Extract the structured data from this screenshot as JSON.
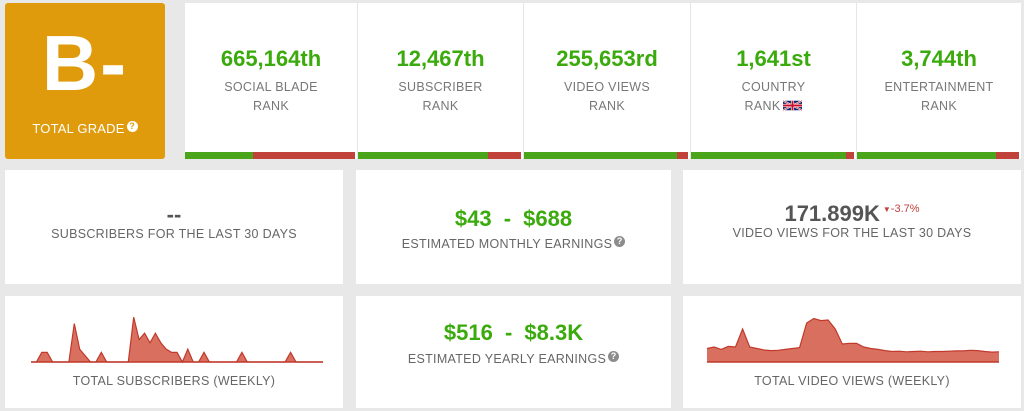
{
  "grade": {
    "letter": "B-",
    "label": "TOTAL GRADE",
    "help_icon": "?"
  },
  "ranks": [
    {
      "value": "665,164th",
      "label_line1": "SOCIAL BLADE",
      "label_line2": "RANK",
      "bar_fraction": 0.4
    },
    {
      "value": "12,467th",
      "label_line1": "SUBSCRIBER",
      "label_line2": "RANK",
      "bar_fraction": 0.8
    },
    {
      "value": "255,653rd",
      "label_line1": "VIDEO VIEWS",
      "label_line2": "RANK",
      "bar_fraction": 0.93
    },
    {
      "value": "1,641st",
      "label_line1": "COUNTRY",
      "label_line2": "RANK",
      "bar_fraction": 0.95,
      "flag_icon": "uk-flag-icon"
    },
    {
      "value": "3,744th",
      "label_line1": "ENTERTAINMENT",
      "label_line2": "RANK",
      "bar_fraction": 0.86
    }
  ],
  "subs_30": {
    "value": "--",
    "label": "SUBSCRIBERS FOR THE LAST 30 DAYS"
  },
  "monthly": {
    "low": "$43",
    "sep": "-",
    "high": "$688",
    "label": "ESTIMATED MONTHLY EARNINGS",
    "help_icon": "?"
  },
  "views_30": {
    "value": "171.899K",
    "change": "-3.7%",
    "label": "VIDEO VIEWS FOR THE LAST 30 DAYS"
  },
  "yearly": {
    "low": "$516",
    "sep": "-",
    "high": "$8.3K",
    "label": "ESTIMATED YEARLY EARNINGS",
    "help_icon": "?"
  },
  "subs_chart": {
    "label": "TOTAL SUBSCRIBERS (WEEKLY)",
    "values": [
      0,
      0,
      3,
      3,
      0,
      0,
      0,
      0,
      12,
      4,
      2,
      0,
      0,
      3,
      0,
      0,
      0,
      0,
      0,
      14,
      7,
      9,
      6,
      9,
      6,
      4,
      3,
      3,
      0,
      4,
      0,
      0,
      3,
      0,
      0,
      0,
      0,
      0,
      0,
      3,
      0,
      0,
      0,
      0,
      0,
      0,
      0,
      0,
      3,
      0,
      0,
      0,
      0,
      0,
      0
    ],
    "max": 15
  },
  "views_chart": {
    "label": "TOTAL VIDEO VIEWS (WEEKLY)",
    "values": [
      4.5,
      5,
      4.2,
      5.2,
      5,
      11,
      5,
      4.5,
      4,
      3.8,
      3.9,
      4.2,
      4.5,
      4.8,
      13,
      14.5,
      13.8,
      14,
      11,
      6,
      6.2,
      6.2,
      5,
      4.5,
      4.2,
      3.8,
      3.5,
      3.6,
      3.4,
      3.5,
      3.6,
      3.4,
      3.5,
      3.5,
      3.6,
      3.7,
      3.7,
      3.9,
      3.8,
      3.5,
      3.3,
      3.4
    ],
    "max": 16
  },
  "colors": {
    "grade_bg": "#e09b0c",
    "green": "#3aaa0c",
    "red": "#c1413b",
    "chart_fill": "#d9705f",
    "chart_line": "#c0392b"
  }
}
